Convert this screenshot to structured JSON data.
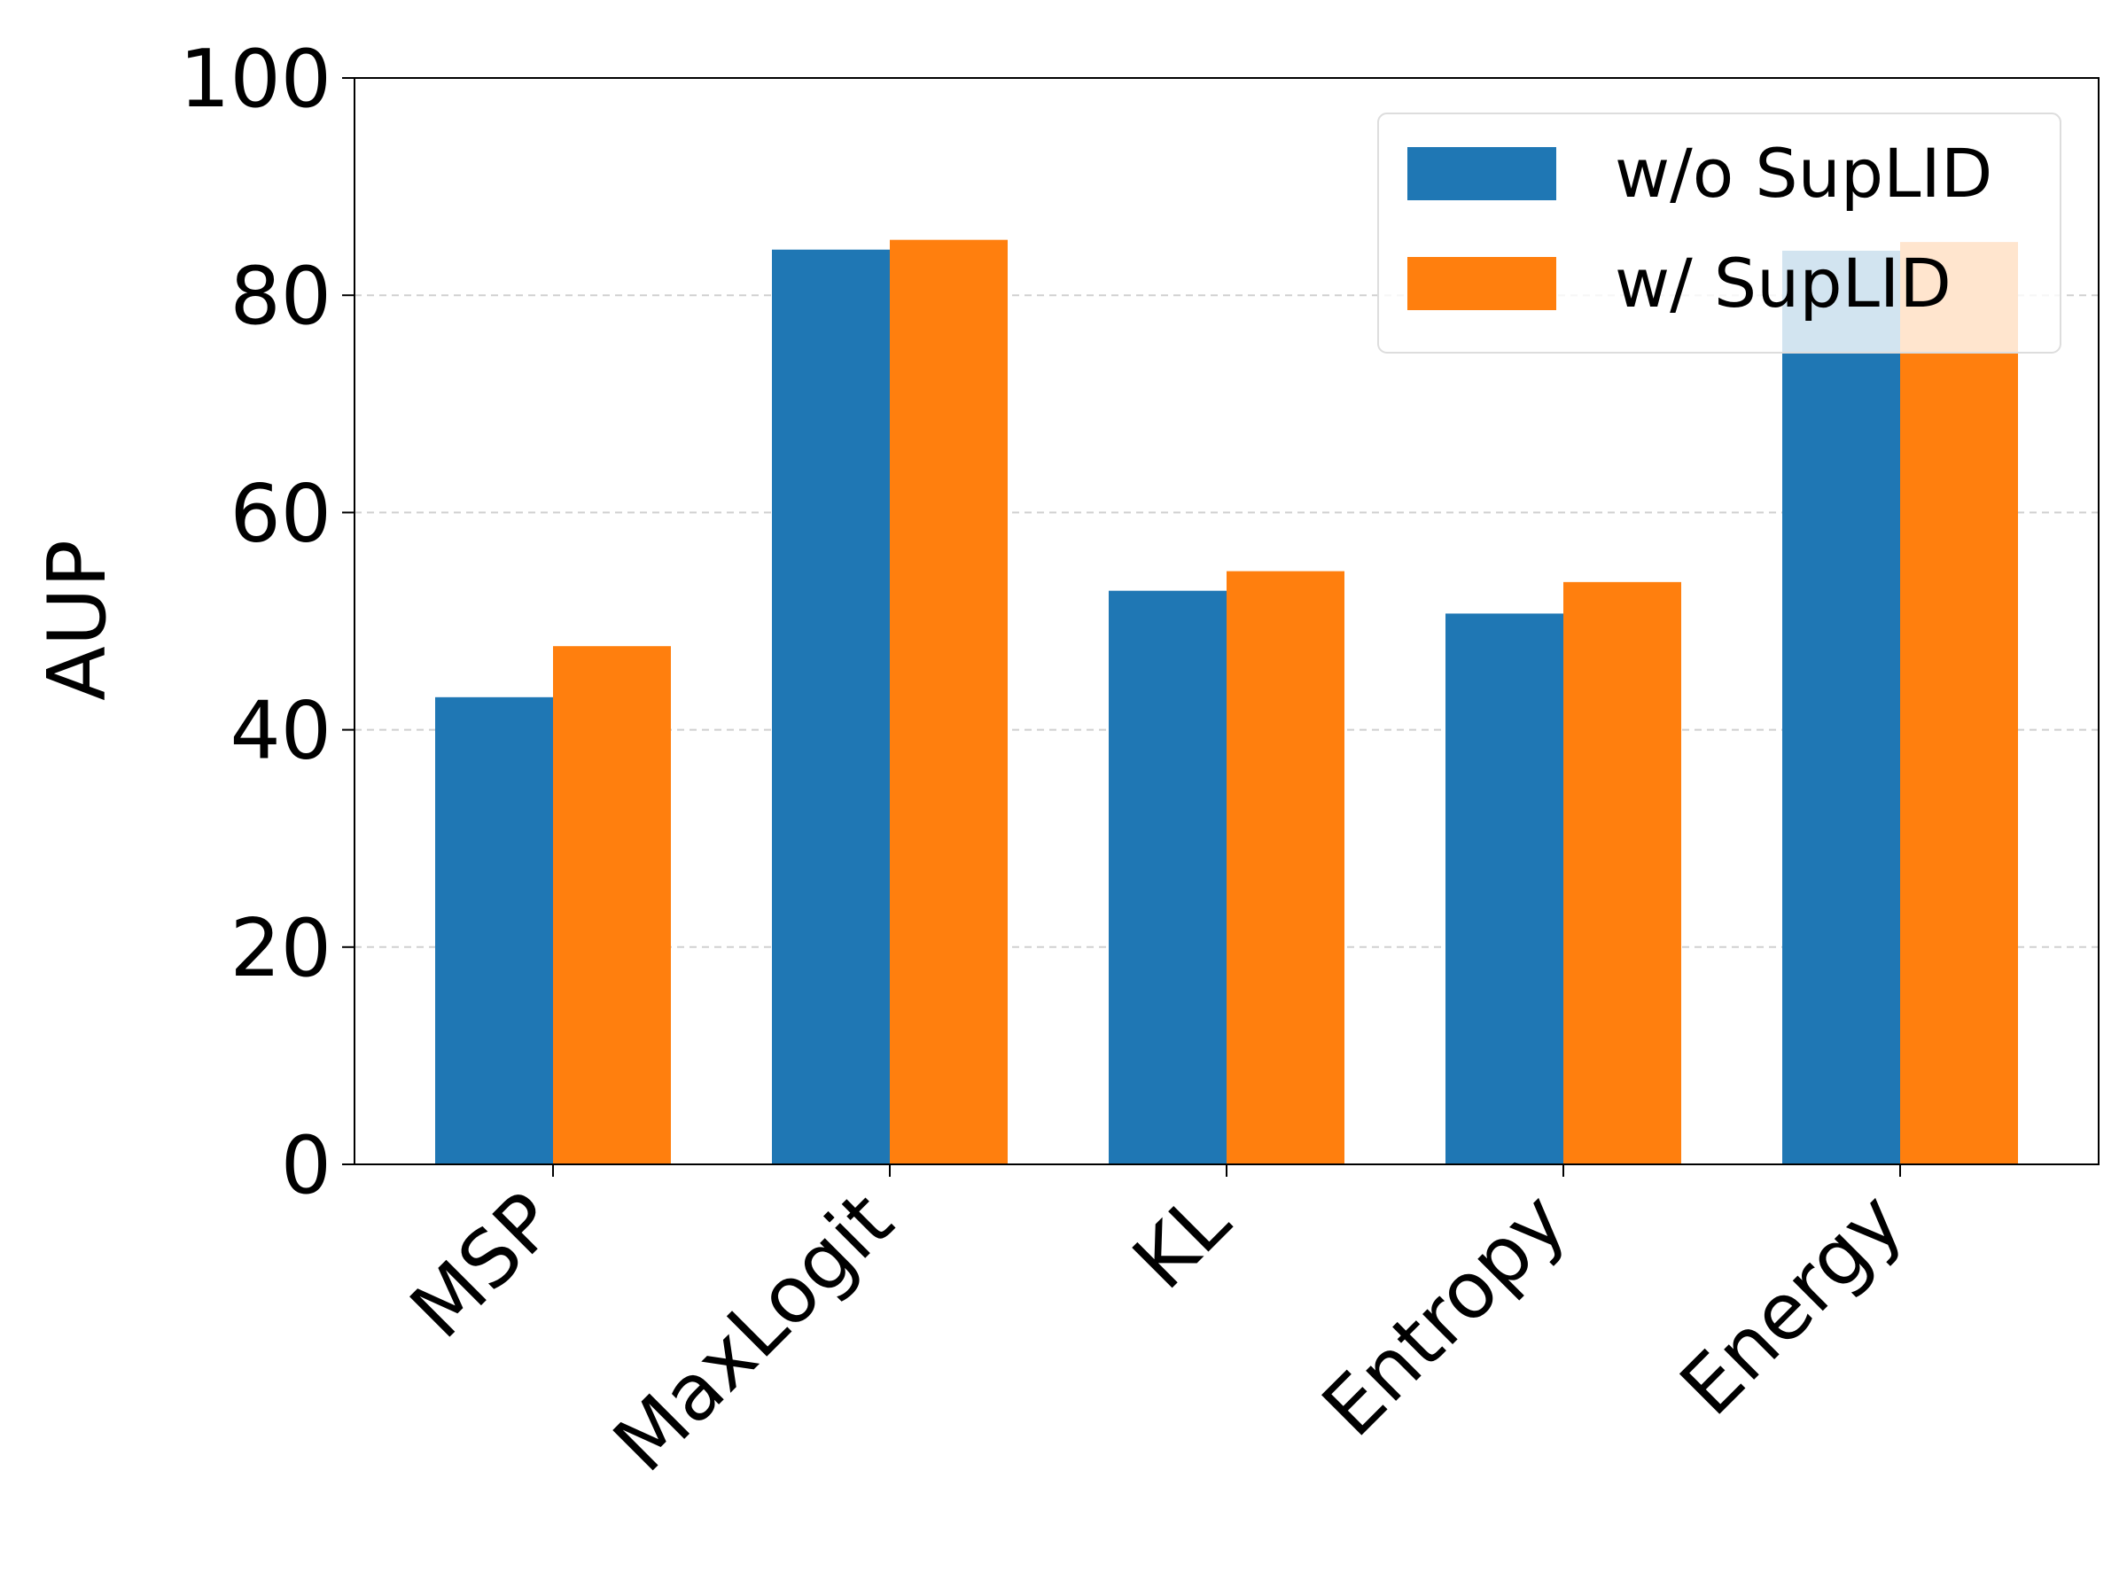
{
  "chart_data": {
    "type": "bar",
    "categories": [
      "MSP",
      "MaxLogit",
      "KL",
      "Entropy",
      "Energy"
    ],
    "series": [
      {
        "name": "w/o SupLID",
        "color": "#1f77b4",
        "values": [
          43.0,
          84.2,
          52.8,
          50.7,
          84.1
        ]
      },
      {
        "name": "w/ SupLID",
        "color": "#ff7f0e",
        "values": [
          47.7,
          85.1,
          54.6,
          53.6,
          84.9
        ]
      }
    ],
    "xlabel": "",
    "ylabel": "AUP",
    "ylim": [
      0,
      100
    ],
    "yticks": [
      0,
      20,
      40,
      60,
      80,
      100
    ],
    "grid": "horizontal dashed",
    "legend_position": "top-right"
  }
}
